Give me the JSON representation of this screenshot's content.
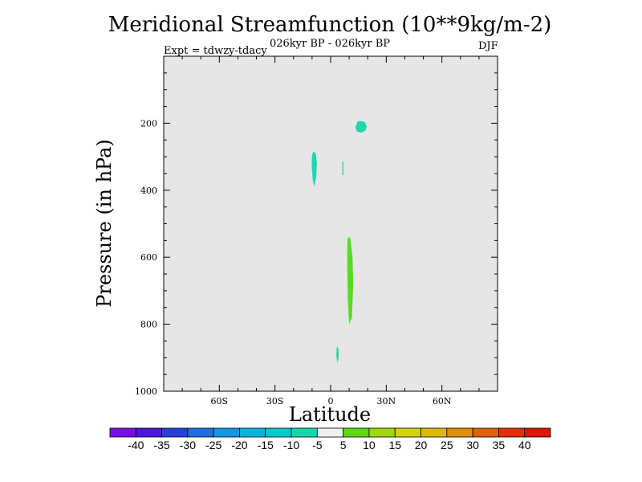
{
  "title": "Meridional Streamfunction (10**9kg/m-2)",
  "subtitle": "026kyr BP - 026kyr BP",
  "expt_label": "Expt = tdwzy-tdacy",
  "season": "DJF",
  "chart_data": {
    "type": "contour",
    "xlabel": "Latitude",
    "ylabel": "Pressure (in hPa)",
    "xlim": [
      -90,
      90
    ],
    "ylim": [
      1000,
      0
    ],
    "x_ticks": [
      {
        "value": -60,
        "label": "60S"
      },
      {
        "value": -30,
        "label": "30S"
      },
      {
        "value": 0,
        "label": "0"
      },
      {
        "value": 30,
        "label": "30N"
      },
      {
        "value": 60,
        "label": "60N"
      }
    ],
    "y_ticks": [
      {
        "value": 200,
        "label": "200"
      },
      {
        "value": 400,
        "label": "400"
      },
      {
        "value": 600,
        "label": "600"
      },
      {
        "value": 800,
        "label": "800"
      },
      {
        "value": 1000,
        "label": "1000"
      }
    ],
    "background_color": "#e6e6e6",
    "regions": [
      {
        "name": "blob-upper-right",
        "color": "#1dd6ab",
        "points": [
          [
            14.5,
            195
          ],
          [
            16.5,
            193
          ],
          [
            18.5,
            197
          ],
          [
            19.5,
            210
          ],
          [
            18.8,
            222
          ],
          [
            16.5,
            228
          ],
          [
            14.2,
            225
          ],
          [
            13.4,
            212
          ]
        ]
      },
      {
        "name": "blob-left",
        "color": "#1dd6ab",
        "points": [
          [
            -9.5,
            285
          ],
          [
            -8.0,
            290
          ],
          [
            -7.4,
            320
          ],
          [
            -7.8,
            360
          ],
          [
            -8.8,
            390
          ],
          [
            -9.6,
            370
          ],
          [
            -10.2,
            330
          ],
          [
            -10.1,
            300
          ]
        ]
      },
      {
        "name": "blob-thin",
        "color": "#1dd6ab",
        "points": [
          [
            6.3,
            315
          ],
          [
            6.9,
            315
          ],
          [
            6.9,
            355
          ],
          [
            6.3,
            355
          ]
        ]
      },
      {
        "name": "blob-green",
        "color": "#55dd22",
        "points": [
          [
            9.4,
            540
          ],
          [
            10.6,
            542
          ],
          [
            11.8,
            600
          ],
          [
            12.2,
            680
          ],
          [
            11.5,
            780
          ],
          [
            10.0,
            800
          ],
          [
            9.2,
            720
          ],
          [
            9.0,
            620
          ],
          [
            9.0,
            560
          ]
        ]
      },
      {
        "name": "blob-bottom",
        "color": "#1dd6ab",
        "points": [
          [
            3.5,
            865
          ],
          [
            4.3,
            875
          ],
          [
            4.3,
            900
          ],
          [
            3.7,
            915
          ],
          [
            3.1,
            895
          ],
          [
            3.2,
            875
          ]
        ]
      }
    ],
    "colorbar": {
      "labels": [
        "-40",
        "-35",
        "-30",
        "-25",
        "-20",
        "-15",
        "-10",
        "-5",
        "5",
        "10",
        "15",
        "20",
        "25",
        "30",
        "35",
        "40"
      ],
      "colors": [
        "#7a10e0",
        "#4a18d8",
        "#2840d8",
        "#1e6ee0",
        "#1495e2",
        "#0cb2df",
        "#06c8cf",
        "#12d8a8",
        "#f0f0f0",
        "#5ad818",
        "#a0d810",
        "#cfd40c",
        "#e0b808",
        "#e09008",
        "#e06206",
        "#e03004",
        "#d81800"
      ]
    }
  }
}
